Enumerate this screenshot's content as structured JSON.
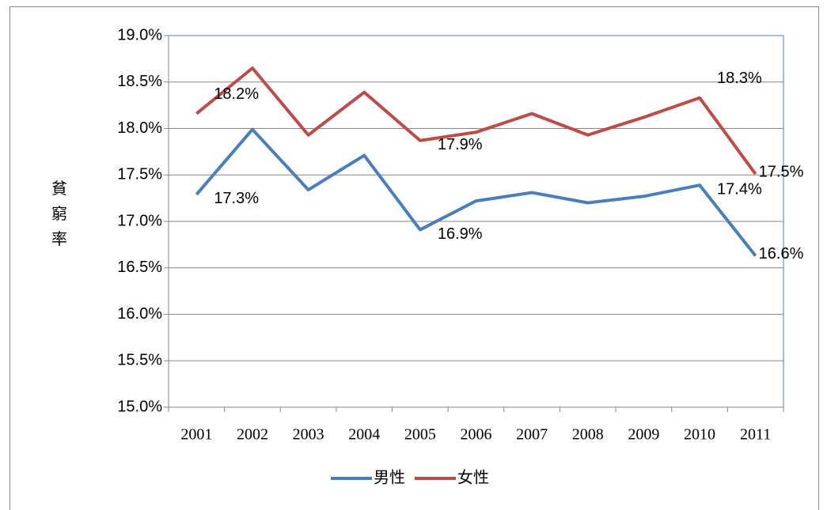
{
  "chart_data": {
    "type": "line",
    "y_label": "貧窮率",
    "categories": [
      "2001",
      "2002",
      "2003",
      "2004",
      "2005",
      "2006",
      "2007",
      "2008",
      "2009",
      "2010",
      "2011"
    ],
    "series": [
      {
        "name": "男性",
        "color": "#4a7ebb",
        "values": [
          17.29,
          17.99,
          17.34,
          17.71,
          16.91,
          17.22,
          17.31,
          17.2,
          17.27,
          17.39,
          16.63
        ],
        "value_labels": [
          "17.3%",
          null,
          null,
          null,
          "16.9%",
          null,
          null,
          null,
          null,
          "17.4%",
          "16.6%"
        ]
      },
      {
        "name": "女性",
        "color": "#be4b48",
        "values": [
          18.16,
          18.65,
          17.93,
          18.39,
          17.87,
          17.96,
          18.16,
          17.93,
          18.12,
          18.33,
          17.51
        ],
        "value_labels": [
          "18.2%",
          null,
          null,
          null,
          "17.9%",
          null,
          null,
          null,
          null,
          "18.3%",
          "17.5%"
        ]
      }
    ],
    "ylim": [
      15,
      19
    ],
    "yticks": [
      {
        "value": 15,
        "label": "15.0%"
      },
      {
        "value": 15.5,
        "label": "15.5%"
      },
      {
        "value": 16,
        "label": "16.0%"
      },
      {
        "value": 16.5,
        "label": "16.5%"
      },
      {
        "value": 17,
        "label": "17.0%"
      },
      {
        "value": 17.5,
        "label": "17.5%"
      },
      {
        "value": 18,
        "label": "18.0%"
      },
      {
        "value": 18.5,
        "label": "18.5%"
      },
      {
        "value": 19,
        "label": "19.0%"
      }
    ],
    "grid": true,
    "legend": "bottom"
  }
}
